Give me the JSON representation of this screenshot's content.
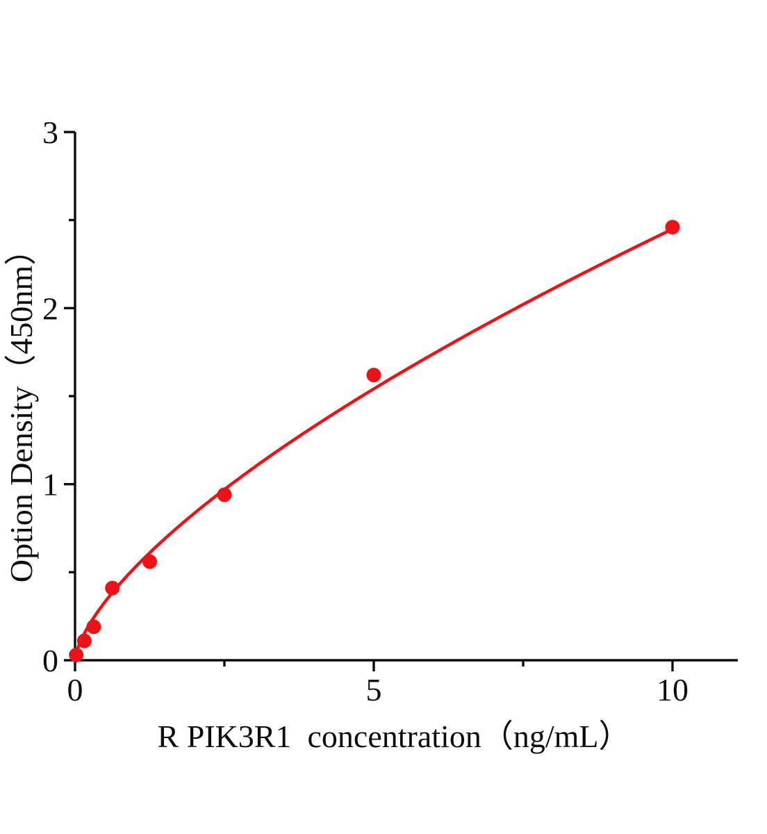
{
  "figure": {
    "background_color": "#ffffff"
  },
  "chart_data": {
    "type": "scatter",
    "title": "",
    "xlabel": "R PIK3R1  concentration（ng/mL）",
    "ylabel": "Option Density（450nm）",
    "xlim": [
      0,
      11.1
    ],
    "ylim": [
      0,
      3
    ],
    "grid": false,
    "legend": false,
    "axes": {
      "x_major_ticks": [
        0,
        5,
        10
      ],
      "x_major_tick_labels": [
        "0",
        "5",
        "10"
      ],
      "x_minor_ticks": [
        2.5,
        7.5
      ],
      "y_major_ticks": [
        0,
        1,
        2,
        3
      ],
      "y_major_tick_labels": [
        "0",
        "1",
        "2",
        "3"
      ],
      "y_minor_ticks": [
        0.5,
        1.5,
        2.5
      ]
    },
    "points": [
      {
        "x": 0.02,
        "y": 0.03
      },
      {
        "x": 0.156,
        "y": 0.11
      },
      {
        "x": 0.3125,
        "y": 0.19
      },
      {
        "x": 0.625,
        "y": 0.41
      },
      {
        "x": 1.25,
        "y": 0.56
      },
      {
        "x": 2.5,
        "y": 0.94
      },
      {
        "x": 5,
        "y": 1.62
      },
      {
        "x": 10,
        "y": 2.46
      }
    ],
    "trendline": {
      "model": "power",
      "equation": "y = 0.526 * x^0.668",
      "a": 0.526,
      "b": 0.668,
      "x_start": 0.02,
      "x_end": 10
    },
    "colors": {
      "curve": "#ec1218",
      "marker": "#ec1218",
      "axis": "#0c0c0c",
      "text": "#0c0c0c",
      "background": "#ffffff"
    }
  }
}
